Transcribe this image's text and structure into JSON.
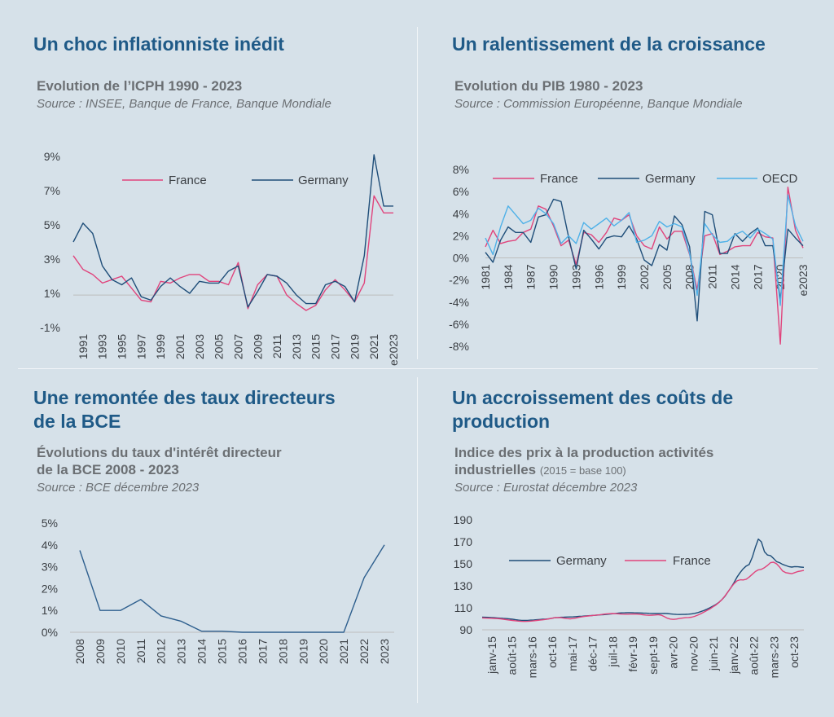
{
  "panels": [
    {
      "heading": "Un choc inflationniste inédit",
      "chart_title": "Evolution de l’ICPH 1990 - 2023",
      "chart_note": "",
      "source": "Source : INSEE, Banque de France, Banque Mondiale"
    },
    {
      "heading": "Un ralentissement de la croissance",
      "chart_title": "Evolution du PIB 1980 - 2023",
      "chart_note": "",
      "source": "Source : Commission Européenne, Banque Mondiale"
    },
    {
      "heading": "Une remontée des taux directeurs\nde la BCE",
      "chart_title": "Évolutions du taux d'intérêt directeur\nde la BCE 2008 - 2023",
      "chart_note": "",
      "source": "Source : BCE décembre 2023"
    },
    {
      "heading": "Un accroissement des coûts de\nproduction",
      "chart_title": "Indice des prix à la production activités\nindustrielles",
      "chart_note": "(2015 = base 100)",
      "source": "Source : Eurostat décembre 2023"
    }
  ],
  "colors": {
    "germany": "#1f4e79",
    "france": "#e0447c",
    "oecd": "#4fb1e8",
    "ecb": "#2e5f8e",
    "axis": "#bdbdbd"
  },
  "chart_data": [
    {
      "type": "line",
      "ylim": [
        -1,
        9
      ],
      "yticks": [
        "-1%",
        "1%",
        "3%",
        "5%",
        "7%",
        "9%"
      ],
      "ytick_values": [
        -1,
        1,
        3,
        5,
        7,
        9
      ],
      "x": [
        "1990",
        "1991",
        "1992",
        "1993",
        "1994",
        "1995",
        "1996",
        "1997",
        "1998",
        "1999",
        "2000",
        "2001",
        "2002",
        "2003",
        "2004",
        "2005",
        "2006",
        "2007",
        "2008",
        "2009",
        "2010",
        "2011",
        "2012",
        "2013",
        "2014",
        "2015",
        "2016",
        "2017",
        "2018",
        "2019",
        "2020",
        "2021",
        "2022",
        "2023"
      ],
      "xtick_labels": [
        "1991",
        "1993",
        "1995",
        "1997",
        "1999",
        "2001",
        "2003",
        "2005",
        "2007",
        "2009",
        "2011",
        "2013",
        "2015",
        "2017",
        "2019",
        "2021",
        "e2023"
      ],
      "legend_position": "top",
      "series": [
        {
          "name": "France",
          "color": "#e0447c",
          "values": [
            3.2,
            2.4,
            2.1,
            1.6,
            1.8,
            2.0,
            1.3,
            0.6,
            0.5,
            1.7,
            1.6,
            1.9,
            2.1,
            2.1,
            1.7,
            1.7,
            1.5,
            2.8,
            0.1,
            1.5,
            2.1,
            2.0,
            0.9,
            0.4,
            0.0,
            0.3,
            1.2,
            1.8,
            1.2,
            0.5,
            1.6,
            6.7,
            5.7,
            5.7
          ]
        },
        {
          "name": "Germany",
          "color": "#1f4e79",
          "values": [
            4.0,
            5.1,
            4.5,
            2.6,
            1.8,
            1.5,
            1.9,
            0.8,
            0.6,
            1.4,
            1.9,
            1.4,
            1.0,
            1.7,
            1.6,
            1.6,
            2.3,
            2.6,
            0.2,
            1.1,
            2.1,
            2.0,
            1.6,
            0.9,
            0.4,
            0.4,
            1.5,
            1.7,
            1.4,
            0.5,
            3.2,
            9.1,
            6.1,
            6.1
          ]
        }
      ]
    },
    {
      "type": "line",
      "ylim": [
        -8,
        8
      ],
      "yticks": [
        "-8%",
        "-6%",
        "-4%",
        "-2%",
        "0%",
        "2%",
        "4%",
        "6%",
        "8%"
      ],
      "ytick_values": [
        -8,
        -6,
        -4,
        -2,
        0,
        2,
        4,
        6,
        8
      ],
      "x": [
        "1981",
        "1982",
        "1983",
        "1984",
        "1985",
        "1986",
        "1987",
        "1988",
        "1989",
        "1990",
        "1991",
        "1992",
        "1993",
        "1994",
        "1995",
        "1996",
        "1997",
        "1998",
        "1999",
        "2000",
        "2001",
        "2002",
        "2003",
        "2004",
        "2005",
        "2006",
        "2007",
        "2008",
        "2009",
        "2010",
        "2011",
        "2012",
        "2013",
        "2014",
        "2015",
        "2016",
        "2017",
        "2018",
        "2019",
        "2020",
        "2021",
        "2022",
        "e2023"
      ],
      "xtick_labels": [
        "1981",
        "1984",
        "1987",
        "1990",
        "1993",
        "1996",
        "1999",
        "2002",
        "2005",
        "2008",
        "2011",
        "2014",
        "2017",
        "2020",
        "e2023"
      ],
      "legend_position": "top",
      "series": [
        {
          "name": "France",
          "color": "#e0447c",
          "values": [
            1.0,
            2.5,
            1.3,
            1.5,
            1.6,
            2.3,
            2.6,
            4.7,
            4.4,
            2.9,
            1.1,
            1.6,
            -0.6,
            2.3,
            2.1,
            1.4,
            2.3,
            3.6,
            3.4,
            3.9,
            2.0,
            1.1,
            0.8,
            2.8,
            1.7,
            2.4,
            2.4,
            0.3,
            -2.9,
            2.0,
            2.2,
            0.3,
            0.6,
            1.0,
            1.1,
            1.1,
            2.3,
            1.9,
            1.8,
            -7.8,
            6.4,
            2.5,
            0.9
          ]
        },
        {
          "name": "Germany",
          "color": "#1f4e79",
          "values": [
            0.5,
            -0.4,
            1.6,
            2.8,
            2.3,
            2.3,
            1.4,
            3.7,
            3.9,
            5.3,
            5.1,
            1.9,
            -1.0,
            2.5,
            1.7,
            0.8,
            1.8,
            2.0,
            1.9,
            2.9,
            1.7,
            -0.2,
            -0.7,
            1.2,
            0.7,
            3.8,
            3.0,
            1.0,
            -5.7,
            4.2,
            3.9,
            0.4,
            0.4,
            2.2,
            1.5,
            2.2,
            2.7,
            1.1,
            1.1,
            -3.8,
            2.6,
            1.8,
            1.1
          ]
        },
        {
          "name": "OECD",
          "color": "#4fb1e8",
          "values": [
            1.8,
            0.3,
            2.8,
            4.7,
            3.9,
            3.1,
            3.4,
            4.5,
            4.0,
            3.1,
            1.3,
            2.0,
            1.3,
            3.2,
            2.6,
            3.1,
            3.6,
            2.9,
            3.4,
            4.1,
            1.4,
            1.6,
            2.0,
            3.3,
            2.8,
            3.1,
            2.8,
            0.4,
            -3.4,
            3.1,
            2.1,
            1.4,
            1.5,
            2.1,
            2.4,
            1.8,
            2.6,
            2.2,
            1.7,
            -4.3,
            5.7,
            2.9,
            1.5
          ]
        }
      ]
    },
    {
      "type": "line",
      "ylim": [
        0,
        5
      ],
      "yticks": [
        "0%",
        "1%",
        "2%",
        "3%",
        "4%",
        "5%"
      ],
      "ytick_values": [
        0,
        1,
        2,
        3,
        4,
        5
      ],
      "x": [
        "2008",
        "2009",
        "2010",
        "2011",
        "2012",
        "2013",
        "2014",
        "2015",
        "2016",
        "2017",
        "2018",
        "2019",
        "2020",
        "2021",
        "2022",
        "2023"
      ],
      "xtick_labels": [
        "2008",
        "2009",
        "2010",
        "2011",
        "2012",
        "2013",
        "2014",
        "2015",
        "2016",
        "2017",
        "2018",
        "2019",
        "2020",
        "2021",
        "2022",
        "2023"
      ],
      "series": [
        {
          "name": "",
          "color": "#2e5f8e",
          "values": [
            3.75,
            1.0,
            1.0,
            1.5,
            0.75,
            0.5,
            0.05,
            0.05,
            0.0,
            0.0,
            0.0,
            0.0,
            0.0,
            0.0,
            2.5,
            4.0
          ]
        }
      ]
    },
    {
      "type": "line",
      "ylim": [
        90,
        190
      ],
      "yticks": [
        "90",
        "110",
        "130",
        "150",
        "170",
        "190"
      ],
      "ytick_values": [
        90,
        110,
        130,
        150,
        170,
        190
      ],
      "x_start": "janv-15",
      "x_interval_months": 1,
      "xtick_labels": [
        "janv-15",
        "août-15",
        "mars-16",
        "oct-16",
        "mai-17",
        "déc-17",
        "juil-18",
        "févr-19",
        "sept-19",
        "avr-20",
        "nov-20",
        "juin-21",
        "janv-22",
        "août-22",
        "mars-23",
        "oct-23"
      ],
      "legend_position": "top",
      "series": [
        {
          "name": "Germany",
          "color": "#1f4e79",
          "values": [
            101.5,
            101.4,
            101.3,
            101.2,
            101.0,
            100.8,
            100.6,
            100.4,
            100.2,
            99.9,
            99.6,
            99.2,
            98.8,
            98.6,
            98.5,
            98.6,
            98.8,
            99.0,
            99.2,
            99.4,
            99.6,
            99.8,
            100.1,
            100.5,
            101.0,
            101.2,
            101.4,
            101.5,
            101.6,
            101.7,
            101.8,
            102.0,
            102.2,
            102.4,
            102.6,
            102.8,
            103.0,
            103.2,
            103.4,
            103.6,
            103.8,
            104.0,
            104.3,
            104.6,
            104.9,
            105.2,
            105.4,
            105.5,
            105.6,
            105.6,
            105.5,
            105.4,
            105.3,
            105.2,
            105.1,
            105.0,
            104.9,
            104.8,
            104.8,
            104.9,
            105.0,
            104.8,
            104.5,
            104.2,
            104.0,
            103.9,
            104.0,
            104.1,
            104.2,
            104.5,
            105.0,
            105.6,
            106.5,
            107.5,
            108.7,
            110.0,
            111.5,
            113.0,
            115.0,
            117.5,
            120.5,
            124.5,
            128.5,
            133.0,
            138.0,
            142.0,
            145.5,
            148.0,
            149.5,
            156.0,
            165.0,
            172.5,
            170.0,
            161.0,
            158.0,
            157.5,
            155.0,
            152.0,
            151.0,
            149.5,
            148.5,
            147.5,
            147.0,
            147.5,
            147.3,
            147.0,
            146.8
          ]
        },
        {
          "name": "France",
          "color": "#e0447c",
          "values": [
            100.8,
            100.7,
            100.6,
            100.5,
            100.4,
            100.2,
            100.0,
            99.6,
            99.2,
            98.8,
            98.5,
            98.2,
            97.9,
            97.7,
            97.6,
            97.7,
            97.9,
            98.2,
            98.5,
            98.8,
            99.1,
            99.5,
            100.0,
            100.5,
            101.0,
            101.2,
            101.0,
            100.6,
            100.2,
            100.0,
            100.3,
            100.8,
            101.4,
            101.9,
            102.3,
            102.6,
            102.9,
            103.2,
            103.5,
            103.8,
            104.2,
            104.5,
            104.7,
            104.8,
            104.7,
            104.5,
            104.3,
            104.2,
            104.2,
            104.3,
            104.4,
            104.3,
            104.0,
            103.7,
            103.4,
            103.2,
            103.3,
            103.5,
            103.8,
            103.3,
            102.0,
            100.6,
            99.8,
            99.5,
            99.8,
            100.3,
            100.7,
            101.0,
            101.2,
            101.5,
            102.2,
            103.3,
            104.5,
            106.0,
            107.5,
            109.0,
            110.8,
            112.5,
            114.8,
            117.5,
            120.8,
            124.5,
            128.5,
            132.0,
            134.5,
            135.5,
            135.3,
            136.0,
            138.0,
            140.5,
            143.0,
            144.5,
            145.0,
            146.5,
            148.5,
            151.0,
            151.5,
            150.0,
            147.0,
            143.5,
            142.0,
            141.5,
            141.0,
            142.0,
            143.0,
            143.5,
            144.0
          ]
        }
      ]
    }
  ]
}
